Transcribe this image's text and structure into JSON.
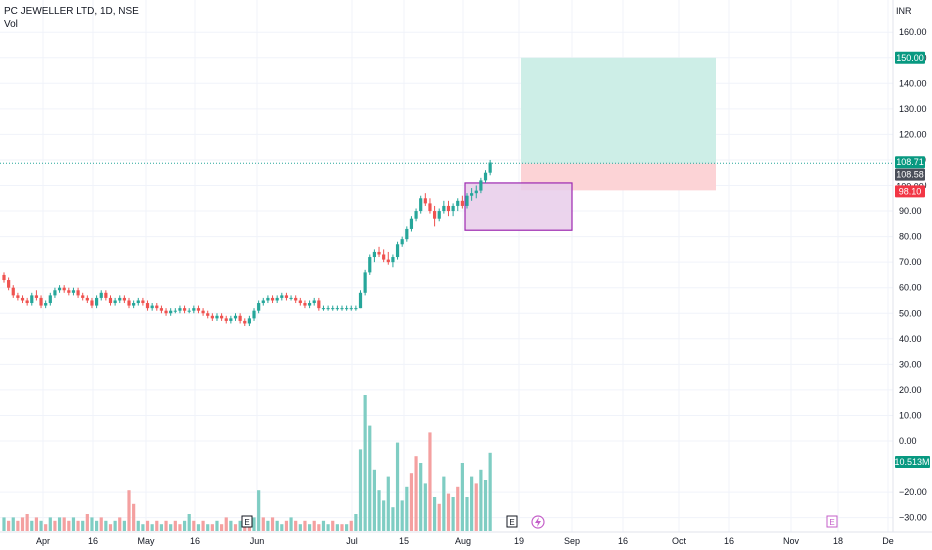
{
  "header": {
    "title": "PC JEWELLER LTD, 1D, NSE",
    "volume_label": "Vol"
  },
  "currency": "INR",
  "price_tags": {
    "target": "150.00",
    "last": "108.71",
    "entry": "108.58",
    "stop": "98.10",
    "hidden": "100.00",
    "volume": "10.513M"
  },
  "colors": {
    "up": "#26a69a",
    "down": "#ef5350",
    "vol_up": "#7fcdc3",
    "vol_down": "#f4a0a0",
    "target_zone": "#cdeee7",
    "stop_zone": "#fcd3d6",
    "rect_fill": "#e8cdea",
    "rect_border": "#9c27b0",
    "last_price_line": "#26a69a",
    "grid": "#f0f3fa"
  },
  "chart_data": {
    "type": "candlestick",
    "price_axis": {
      "ticks": [
        "160.00",
        "150.00",
        "140.00",
        "130.00",
        "120.00",
        "110.00",
        "100.00",
        "90.00",
        "80.00",
        "70.00",
        "60.00",
        "50.00",
        "40.00",
        "30.00",
        "20.00",
        "10.00",
        "0.00",
        "−20.00",
        "−30.00"
      ],
      "ylim": [
        -30,
        160
      ]
    },
    "time_axis": {
      "ticks": [
        "Apr",
        "16",
        "May",
        "16",
        "Jun",
        "Jul",
        "15",
        "Aug",
        "19",
        "Sep",
        "16",
        "Oct",
        "16",
        "Nov",
        "18",
        "De"
      ]
    },
    "candles": [
      [
        65,
        66,
        62,
        63
      ],
      [
        63,
        64,
        59,
        60
      ],
      [
        60,
        61,
        56,
        57
      ],
      [
        57,
        58,
        55,
        56
      ],
      [
        56,
        57,
        54,
        55
      ],
      [
        55,
        56,
        53,
        54
      ],
      [
        54,
        58,
        53,
        57
      ],
      [
        57,
        59,
        55,
        56
      ],
      [
        56,
        57,
        52,
        53
      ],
      [
        53,
        55,
        52,
        54
      ],
      [
        54,
        58,
        53,
        57
      ],
      [
        57,
        60,
        56,
        59
      ],
      [
        59,
        61,
        58,
        60
      ],
      [
        60,
        61,
        58,
        59
      ],
      [
        59,
        60,
        57,
        58
      ],
      [
        58,
        60,
        57,
        59
      ],
      [
        59,
        60,
        56,
        57
      ],
      [
        57,
        58,
        55,
        56
      ],
      [
        56,
        57,
        54,
        55
      ],
      [
        55,
        56,
        52,
        53
      ],
      [
        53,
        57,
        52,
        56
      ],
      [
        56,
        59,
        55,
        58
      ],
      [
        58,
        59,
        55,
        56
      ],
      [
        56,
        57,
        53,
        54
      ],
      [
        54,
        56,
        53,
        55
      ],
      [
        55,
        57,
        54,
        56
      ],
      [
        56,
        57,
        54,
        55
      ],
      [
        55,
        56,
        52,
        53
      ],
      [
        53,
        55,
        52,
        54
      ],
      [
        54,
        56,
        53,
        55
      ],
      [
        55,
        56,
        53,
        54
      ],
      [
        54,
        55,
        51,
        52
      ],
      [
        52,
        54,
        51,
        53
      ],
      [
        53,
        54,
        51,
        52
      ],
      [
        52,
        53,
        50,
        51
      ],
      [
        51,
        52,
        49,
        50
      ],
      [
        50,
        52,
        49,
        51
      ],
      [
        51,
        52,
        50,
        51
      ],
      [
        51,
        53,
        50,
        52
      ],
      [
        52,
        53,
        50,
        51
      ],
      [
        51,
        52,
        50,
        51
      ],
      [
        51,
        53,
        50,
        52
      ],
      [
        52,
        53,
        50,
        51
      ],
      [
        51,
        52,
        49,
        50
      ],
      [
        50,
        51,
        48,
        49
      ],
      [
        49,
        50,
        47,
        48
      ],
      [
        48,
        50,
        47,
        49
      ],
      [
        49,
        50,
        47,
        48
      ],
      [
        48,
        49,
        46,
        47
      ],
      [
        47,
        49,
        46,
        48
      ],
      [
        48,
        50,
        47,
        49
      ],
      [
        49,
        50,
        46,
        47
      ],
      [
        47,
        48,
        45,
        46
      ],
      [
        46,
        49,
        45,
        48
      ],
      [
        48,
        52,
        47,
        51
      ],
      [
        51,
        55,
        50,
        54
      ],
      [
        54,
        56,
        53,
        55
      ],
      [
        55,
        57,
        54,
        56
      ],
      [
        56,
        57,
        54,
        55
      ],
      [
        55,
        57,
        54,
        56
      ],
      [
        56,
        58,
        55,
        57
      ],
      [
        57,
        58,
        55,
        56
      ],
      [
        56,
        57,
        55,
        56
      ],
      [
        56,
        57,
        54,
        55
      ],
      [
        55,
        56,
        53,
        54
      ],
      [
        54,
        55,
        52,
        53
      ],
      [
        53,
        55,
        52,
        54
      ],
      [
        54,
        56,
        53,
        55
      ],
      [
        55,
        56,
        51,
        52
      ],
      [
        52,
        53,
        51,
        52
      ],
      [
        52,
        53,
        51,
        52
      ],
      [
        52,
        53,
        51,
        52
      ],
      [
        52,
        53,
        51,
        52
      ],
      [
        52,
        53,
        51,
        52
      ],
      [
        52,
        53,
        51,
        52
      ],
      [
        52,
        53,
        51,
        52
      ],
      [
        52,
        53,
        51,
        52
      ],
      [
        52,
        59,
        52,
        58
      ],
      [
        58,
        67,
        57,
        66
      ],
      [
        66,
        73,
        65,
        72
      ],
      [
        72,
        75,
        70,
        74
      ],
      [
        74,
        76,
        72,
        73
      ],
      [
        73,
        75,
        70,
        71
      ],
      [
        71,
        74,
        69,
        70
      ],
      [
        70,
        73,
        68,
        72
      ],
      [
        72,
        78,
        71,
        77
      ],
      [
        77,
        80,
        76,
        79
      ],
      [
        79,
        84,
        78,
        83
      ],
      [
        83,
        88,
        82,
        87
      ],
      [
        87,
        91,
        86,
        90
      ],
      [
        90,
        96,
        89,
        95
      ],
      [
        95,
        97,
        92,
        93
      ],
      [
        93,
        95,
        89,
        90
      ],
      [
        90,
        92,
        84,
        87
      ],
      [
        87,
        91,
        86,
        90
      ],
      [
        90,
        94,
        89,
        92
      ],
      [
        92,
        94,
        88,
        90
      ],
      [
        90,
        93,
        88,
        92
      ],
      [
        92,
        95,
        90,
        94
      ],
      [
        94,
        96,
        91,
        92
      ],
      [
        92,
        97,
        91,
        96
      ],
      [
        96,
        99,
        94,
        97
      ],
      [
        97,
        100,
        95,
        98
      ],
      [
        98,
        103,
        97,
        102
      ],
      [
        102,
        106,
        101,
        105
      ],
      [
        105,
        110,
        104,
        109
      ]
    ],
    "volumes": [
      [
        4,
        0
      ],
      [
        3,
        1
      ],
      [
        4,
        0
      ],
      [
        3,
        1
      ],
      [
        4,
        1
      ],
      [
        5,
        1
      ],
      [
        3,
        0
      ],
      [
        4,
        1
      ],
      [
        3,
        0
      ],
      [
        2,
        1
      ],
      [
        4,
        0
      ],
      [
        3,
        1
      ],
      [
        4,
        0
      ],
      [
        4,
        1
      ],
      [
        3,
        1
      ],
      [
        4,
        0
      ],
      [
        3,
        1
      ],
      [
        3,
        0
      ],
      [
        5,
        1
      ],
      [
        4,
        0
      ],
      [
        3,
        0
      ],
      [
        4,
        1
      ],
      [
        3,
        0
      ],
      [
        2,
        1
      ],
      [
        3,
        0
      ],
      [
        4,
        1
      ],
      [
        3,
        0
      ],
      [
        12,
        1
      ],
      [
        8,
        1
      ],
      [
        3,
        0
      ],
      [
        2,
        0
      ],
      [
        3,
        1
      ],
      [
        2,
        0
      ],
      [
        3,
        1
      ],
      [
        2,
        0
      ],
      [
        3,
        1
      ],
      [
        2,
        0
      ],
      [
        3,
        1
      ],
      [
        2,
        1
      ],
      [
        3,
        0
      ],
      [
        5,
        0
      ],
      [
        3,
        1
      ],
      [
        2,
        0
      ],
      [
        3,
        1
      ],
      [
        2,
        0
      ],
      [
        2,
        1
      ],
      [
        3,
        0
      ],
      [
        2,
        1
      ],
      [
        4,
        1
      ],
      [
        3,
        0
      ],
      [
        2,
        1
      ],
      [
        3,
        0
      ],
      [
        2,
        1
      ],
      [
        3,
        1
      ],
      [
        4,
        0
      ],
      [
        12,
        0
      ],
      [
        4,
        1
      ],
      [
        3,
        0
      ],
      [
        4,
        1
      ],
      [
        3,
        0
      ],
      [
        2,
        0
      ],
      [
        3,
        1
      ],
      [
        4,
        0
      ],
      [
        3,
        1
      ],
      [
        2,
        0
      ],
      [
        3,
        1
      ],
      [
        2,
        0
      ],
      [
        3,
        1
      ],
      [
        2,
        1
      ],
      [
        3,
        0
      ],
      [
        2,
        0
      ],
      [
        3,
        1
      ],
      [
        2,
        0
      ],
      [
        2,
        1
      ],
      [
        2,
        0
      ],
      [
        3,
        1
      ],
      [
        5,
        0
      ],
      [
        24,
        0
      ],
      [
        40,
        0
      ],
      [
        31,
        0
      ],
      [
        18,
        0
      ],
      [
        12,
        0
      ],
      [
        9,
        0
      ],
      [
        16,
        0
      ],
      [
        7,
        0
      ],
      [
        26,
        0
      ],
      [
        9,
        0
      ],
      [
        13,
        0
      ],
      [
        17,
        1
      ],
      [
        22,
        1
      ],
      [
        20,
        0
      ],
      [
        14,
        0
      ],
      [
        29,
        1
      ],
      [
        10,
        0
      ],
      [
        8,
        1
      ],
      [
        16,
        0
      ],
      [
        11,
        1
      ],
      [
        10,
        0
      ],
      [
        13,
        1
      ],
      [
        20,
        0
      ],
      [
        10,
        0
      ],
      [
        16,
        0
      ],
      [
        14,
        1
      ],
      [
        18,
        0
      ],
      [
        15,
        0
      ],
      [
        23,
        0
      ]
    ]
  }
}
